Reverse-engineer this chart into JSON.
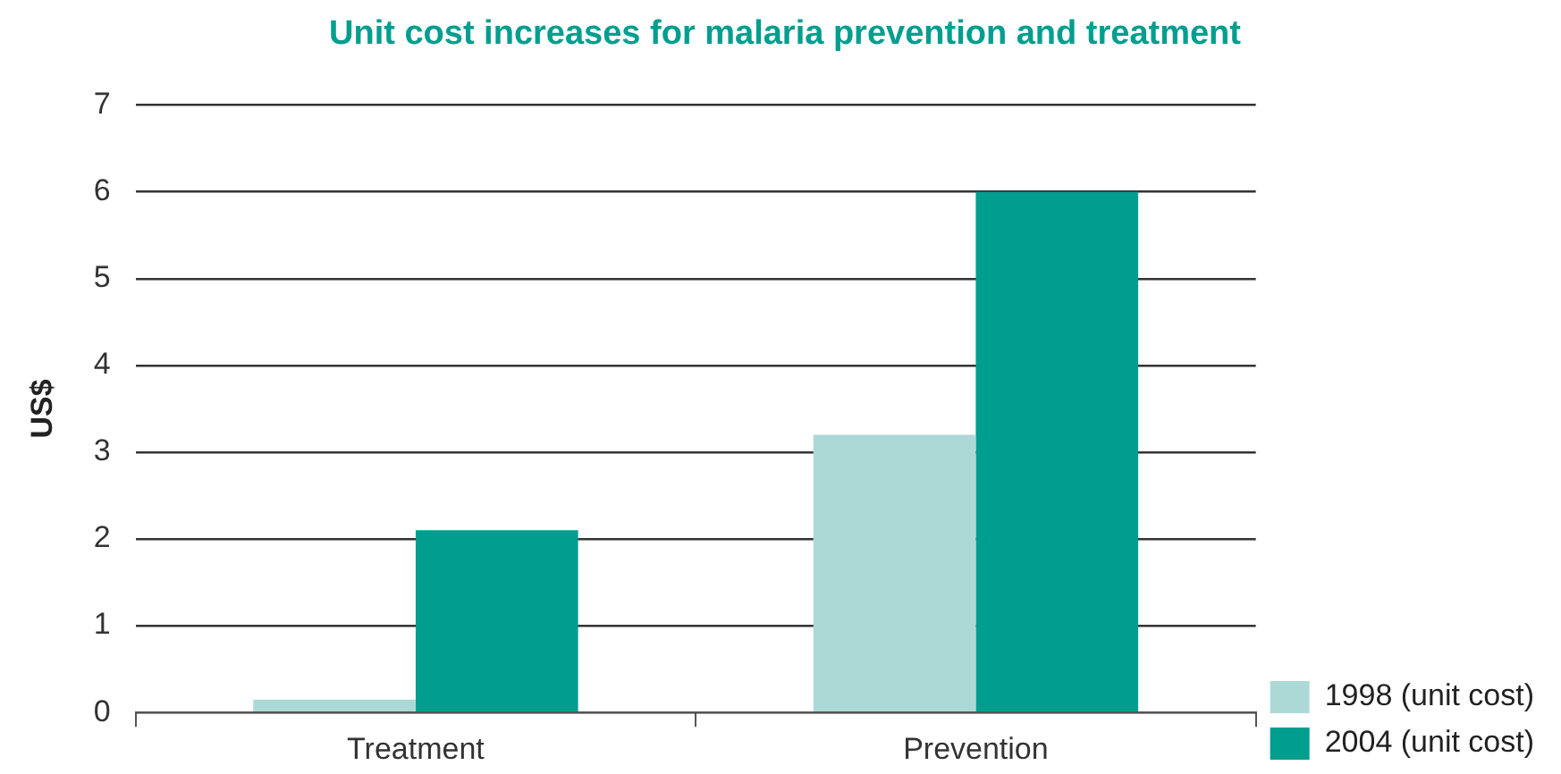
{
  "chart_data": {
    "type": "bar",
    "title": "Unit cost increases for malaria prevention and treatment",
    "ylabel": "US$",
    "categories": [
      "Treatment",
      "Prevention"
    ],
    "series": [
      {
        "name": "1998 (unit cost)",
        "color": "#acd9d6",
        "values": [
          0.15,
          3.2
        ]
      },
      {
        "name": "2004 (unit cost)",
        "color": "#009e8f",
        "values": [
          2.1,
          6.0
        ]
      }
    ],
    "ylim": [
      0,
      7
    ],
    "yticks": [
      0,
      1,
      2,
      3,
      4,
      5,
      6,
      7
    ],
    "grid": "y",
    "legend": "bottom right"
  }
}
